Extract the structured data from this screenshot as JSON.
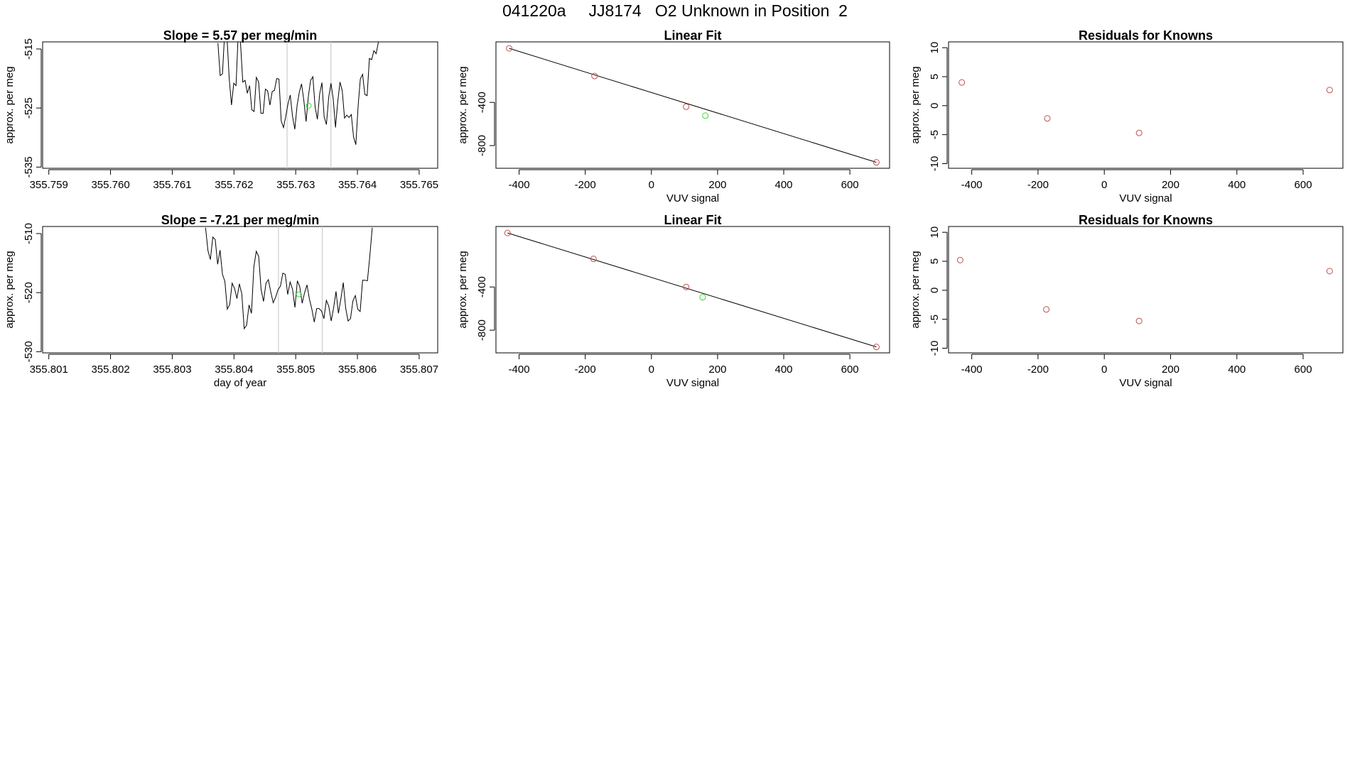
{
  "figure": {
    "title": "041220a     JJ8174   O2 Unknown in Position  2"
  },
  "colors": {
    "line": "#000000",
    "axis": "#000000",
    "known_point": "#c0504d",
    "unknown_point": "#33dd33",
    "marker_line": "#cccccc"
  },
  "chart_data": [
    {
      "id": "ts1",
      "type": "line",
      "title": "Slope =  5.57  per meg/min",
      "xlabel": "",
      "ylabel": "approx. per meg",
      "xlim": [
        355.7589,
        355.7653
      ],
      "ylim": [
        -535.2,
        -513.8
      ],
      "xticks": [
        355.759,
        355.76,
        355.761,
        355.762,
        355.763,
        355.764,
        355.765
      ],
      "xtick_labels": [
        "355.759",
        "355.760",
        "355.761",
        "355.762",
        "355.763",
        "355.764",
        "355.765"
      ],
      "yticks": [
        -515,
        -525,
        -535
      ],
      "ytick_labels": [
        "-515",
        "-525",
        "-535"
      ],
      "vlines": [
        355.76286,
        355.76357
      ],
      "highlight": [
        355.76321,
        -524.6
      ],
      "x_start": 355.76174,
      "x_end": 355.76434,
      "values": [
        -514,
        -519.5,
        -519.2,
        -512,
        -513,
        -520,
        -524.5,
        -520.8,
        -521.2,
        -512,
        -514,
        -520.6,
        -520.3,
        -522.5,
        -521.2,
        -525.3,
        -525.6,
        -519.8,
        -520.6,
        -525.9,
        -525.9,
        -521.8,
        -522.1,
        -524.5,
        -522.2,
        -522,
        -520,
        -520.1,
        -527.2,
        -528.3,
        -526.4,
        -524.3,
        -522.8,
        -526.4,
        -528.6,
        -524.6,
        -522.3,
        -520.9,
        -523.7,
        -527.3,
        -523,
        -520.3,
        -519.7,
        -524.8,
        -526.9,
        -522.6,
        -520.7,
        -526.5,
        -527.8,
        -523.2,
        -520.8,
        -523.5,
        -528.3,
        -524,
        -520.6,
        -522.1,
        -526.7,
        -526.2,
        -526.6,
        -526.1,
        -529.9,
        -531.2,
        -524.7,
        -520.1,
        -519.3,
        -522.7,
        -522.9,
        -516.6,
        -516.8,
        -515.3,
        -515.8,
        -513.8
      ]
    },
    {
      "id": "fit1",
      "type": "scatter",
      "title": "Linear Fit",
      "xlabel": "VUV signal",
      "ylabel": "approx. per meg",
      "xlim": [
        -470,
        720
      ],
      "ylim": [
        -1010,
        160
      ],
      "xticks": [
        -400,
        -200,
        0,
        200,
        400,
        600
      ],
      "xtick_labels": [
        "-400",
        "-200",
        "0",
        "200",
        "400",
        "600"
      ],
      "yticks": [
        -400,
        -800
      ],
      "ytick_labels": [
        "-400",
        "-800"
      ],
      "line": [
        [
          -430,
          100
        ],
        [
          680,
          -955
        ]
      ],
      "points": [
        [
          -430,
          100
        ],
        [
          -172,
          -156
        ],
        [
          105,
          -440
        ],
        [
          680,
          -955
        ]
      ],
      "unknown": [
        [
          163,
          -523
        ]
      ]
    },
    {
      "id": "res1",
      "type": "scatter",
      "title": "Residuals for Knowns",
      "xlabel": "VUV signal",
      "ylabel": "approx. per meg",
      "xlim": [
        -470,
        720
      ],
      "ylim": [
        -10.8,
        11
      ],
      "xticks": [
        -400,
        -200,
        0,
        200,
        400,
        600
      ],
      "xtick_labels": [
        "-400",
        "-200",
        "0",
        "200",
        "400",
        "600"
      ],
      "yticks": [
        10,
        5,
        0,
        -5,
        -10
      ],
      "ytick_labels": [
        "10",
        "5",
        "0",
        "-5",
        "-10"
      ],
      "points": [
        [
          -430,
          4.0
        ],
        [
          -172,
          -2.2
        ],
        [
          105,
          -4.7
        ],
        [
          680,
          2.7
        ]
      ]
    },
    {
      "id": "ts2",
      "type": "line",
      "title": "Slope =  -7.21  per meg/min",
      "xlabel": "day of year",
      "ylabel": "approx. per meg",
      "xlim": [
        355.8009,
        355.8073
      ],
      "ylim": [
        -530.2,
        -508.8
      ],
      "xticks": [
        355.801,
        355.802,
        355.803,
        355.804,
        355.805,
        355.806,
        355.807
      ],
      "xtick_labels": [
        "355.801",
        "355.802",
        "355.803",
        "355.804",
        "355.805",
        "355.806",
        "355.807"
      ],
      "yticks": [
        -510,
        -520,
        -530
      ],
      "ytick_labels": [
        "-510",
        "-520",
        "-530"
      ],
      "vlines": [
        355.80472,
        355.80543
      ],
      "highlight": [
        355.80505,
        -520.3
      ],
      "x_start": 355.80354,
      "x_end": 355.80624,
      "values": [
        -509,
        -512.9,
        -514.4,
        -510.6,
        -511,
        -515.2,
        -512.8,
        -516.9,
        -518.1,
        -522.8,
        -522,
        -518.4,
        -519.3,
        -521,
        -518.5,
        -520.2,
        -526.1,
        -525.5,
        -522.1,
        -523.5,
        -515.6,
        -513,
        -513.9,
        -519.5,
        -521.5,
        -518.4,
        -517.8,
        -519.9,
        -521.7,
        -520.8,
        -519.5,
        -518.9,
        -516.7,
        -516.9,
        -520.3,
        -518.2,
        -519.4,
        -522.5,
        -518,
        -519,
        -521.8,
        -520,
        -518.7,
        -521.1,
        -522.8,
        -525,
        -522.7,
        -522.7,
        -523.1,
        -524.4,
        -521.3,
        -522.3,
        -524.8,
        -522.6,
        -519.8,
        -523.5,
        -521.1,
        -518.3,
        -522.6,
        -524.8,
        -524.4,
        -521.4,
        -520.5,
        -522.8,
        -523.2,
        -517.9,
        -517.9,
        -518,
        -513.8,
        -509
      ]
    },
    {
      "id": "fit2",
      "type": "scatter",
      "title": "Linear Fit",
      "xlabel": "VUV signal",
      "ylabel": "approx. per meg",
      "xlim": [
        -470,
        720
      ],
      "ylim": [
        -1010,
        160
      ],
      "xticks": [
        -400,
        -200,
        0,
        200,
        400,
        600
      ],
      "xtick_labels": [
        "-400",
        "-200",
        "0",
        "200",
        "400",
        "600"
      ],
      "yticks": [
        -400,
        -800
      ],
      "ytick_labels": [
        "-400",
        "-800"
      ],
      "line": [
        [
          -435,
          100
        ],
        [
          680,
          -955
        ]
      ],
      "points": [
        [
          -435,
          100
        ],
        [
          -175,
          -140
        ],
        [
          105,
          -400
        ],
        [
          680,
          -955
        ]
      ],
      "unknown": [
        [
          155,
          -495
        ]
      ]
    },
    {
      "id": "res2",
      "type": "scatter",
      "title": "Residuals for Knowns",
      "xlabel": "VUV signal",
      "ylabel": "approx. per meg",
      "xlim": [
        -470,
        720
      ],
      "ylim": [
        -10.8,
        11
      ],
      "xticks": [
        -400,
        -200,
        0,
        200,
        400,
        600
      ],
      "xtick_labels": [
        "-400",
        "-200",
        "0",
        "200",
        "400",
        "600"
      ],
      "yticks": [
        10,
        5,
        0,
        -5,
        -10
      ],
      "ytick_labels": [
        "10",
        "5",
        "0",
        "-5",
        "-10"
      ],
      "points": [
        [
          -435,
          5.2
        ],
        [
          -175,
          -3.3
        ],
        [
          105,
          -5.3
        ],
        [
          680,
          3.3
        ]
      ]
    }
  ]
}
